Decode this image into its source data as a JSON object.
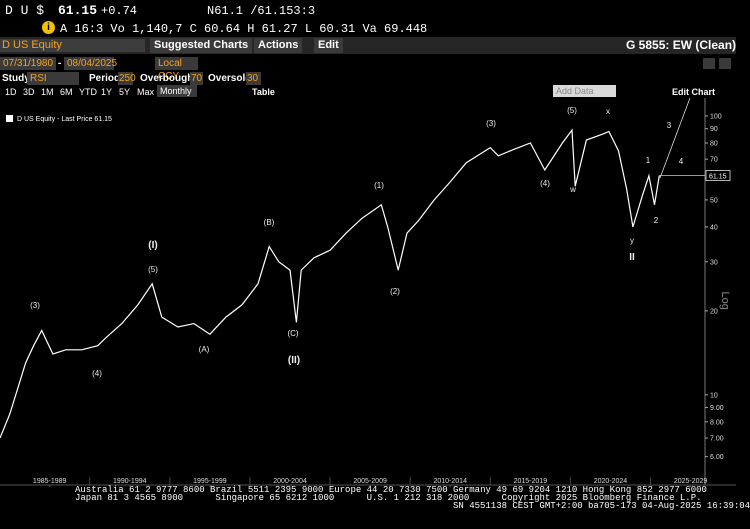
{
  "header": {
    "ticker": "D U $",
    "price": "61.15",
    "change": "+0.74",
    "quote": "N61.1 /61.153:3",
    "details": "A 16:3 Vo 1,140,7 C 60.64 H 61.27 L 60.31 Va 69.448"
  },
  "toolbar": {
    "security": "D US Equity",
    "buttons": [
      "Suggested Charts",
      "Actions",
      "Edit"
    ],
    "chart_name": "G 5855: EW (Clean)"
  },
  "settings": {
    "start_date": "07/31/1980",
    "separator": "-",
    "end_date": "08/04/2025",
    "currency": "Local CCY",
    "study_label": "Study",
    "study": "RSI",
    "period_label": "Period",
    "period": "250",
    "overbought_label": "Overbought",
    "overbought": "70",
    "oversold_label": "Oversold",
    "oversold": "30"
  },
  "ranges": [
    "1D",
    "3D",
    "1M",
    "6M",
    "YTD",
    "1Y",
    "5Y",
    "Max"
  ],
  "frequency": "Monthly",
  "table": "Table",
  "add_data": "Add Data",
  "edit_chart": "Edit Chart",
  "chart_data": {
    "type": "line",
    "x": [
      1984.4,
      1985.0,
      1985.5,
      1986.0,
      1986.5,
      1987.0,
      1987.7,
      1988.5,
      1989.5,
      1990.5,
      1991.0,
      1992.0,
      1993.0,
      1993.9,
      1994.5,
      1995.5,
      1996.5,
      1997.5,
      1998.5,
      1999.5,
      2000.5,
      2001.2,
      2001.8,
      2002.5,
      2002.9,
      2003.2,
      2004.0,
      2005.0,
      2006.0,
      2007.0,
      2008.2,
      2008.6,
      2009.25,
      2009.8,
      2010.5,
      2011.5,
      2012.5,
      2013.5,
      2015.0,
      2015.5,
      2016.5,
      2017.5,
      2018.4,
      2019.5,
      2020.1,
      2020.3,
      2021.0,
      2022.0,
      2022.4,
      2023.0,
      2023.5,
      2023.9,
      2024.5,
      2024.9,
      2025.25,
      2025.55
    ],
    "series": [
      {
        "name": "D US Equity - Last Price",
        "color": "#ffffff",
        "values": [
          7.0,
          8.5,
          10.5,
          13,
          15,
          17,
          14,
          14.5,
          14.5,
          15,
          16,
          18,
          21,
          25,
          19,
          17.5,
          18,
          16.5,
          19,
          21,
          25,
          34,
          30,
          28,
          18.2,
          28,
          31,
          33,
          38,
          43,
          48,
          40,
          28,
          38,
          42,
          50,
          58,
          68,
          77,
          72,
          76,
          80,
          64,
          80,
          89,
          56,
          82,
          86,
          88,
          75,
          55,
          40,
          52,
          61,
          48,
          61.15
        ]
      }
    ],
    "last_price": 61.15,
    "xlim": [
      1984.4,
      2028.4
    ],
    "xticks": [
      {
        "value": 1987.5,
        "label": "1985-1989"
      },
      {
        "value": 1992.5,
        "label": "1990-1994"
      },
      {
        "value": 1997.5,
        "label": "1995-1999"
      },
      {
        "value": 2002.5,
        "label": "2000-2004"
      },
      {
        "value": 2007.5,
        "label": "2005-2009"
      },
      {
        "value": 2012.5,
        "label": "2010-2014"
      },
      {
        "value": 2017.5,
        "label": "2015-2019"
      },
      {
        "value": 2022.5,
        "label": "2020-2024"
      },
      {
        "value": 2027.5,
        "label": "2025-2029"
      }
    ],
    "ylim": [
      5.6,
      116
    ],
    "yticks": [
      {
        "value": 6,
        "label": "6.00"
      },
      {
        "value": 7,
        "label": "7.00"
      },
      {
        "value": 8,
        "label": "8.00"
      },
      {
        "value": 9,
        "label": "9.00"
      },
      10,
      20,
      30,
      40,
      50,
      60,
      70,
      80,
      90,
      100
    ],
    "log_scale": true,
    "y_axis_label": "Log",
    "annotations": [
      "(3)",
      "(4)",
      "(5)",
      "(I)",
      "(A)",
      "(B)",
      "(C)",
      "(II)",
      "(1)",
      "(2)",
      "(3)",
      "(4)",
      "(5)",
      "w",
      "x",
      "y",
      "II",
      "1",
      "2",
      "3",
      "4"
    ]
  },
  "footer": [
    "Australia 61 2 9777 8600 Brazil 5511 2395 9000 Europe 44 20 7330 7500 Germany 49 69 9204 1210 Hong Kong 852 2977 6000",
    "Japan 81 3 4565 8900      Singapore 65 6212 1000      U.S. 1 212 318 2000      Copyright 2025 Bloomberg Finance L.P.",
    "SN 4551138 CEST GMT+2:00 ba705-173 04-Aug-2025 16:39:04"
  ]
}
